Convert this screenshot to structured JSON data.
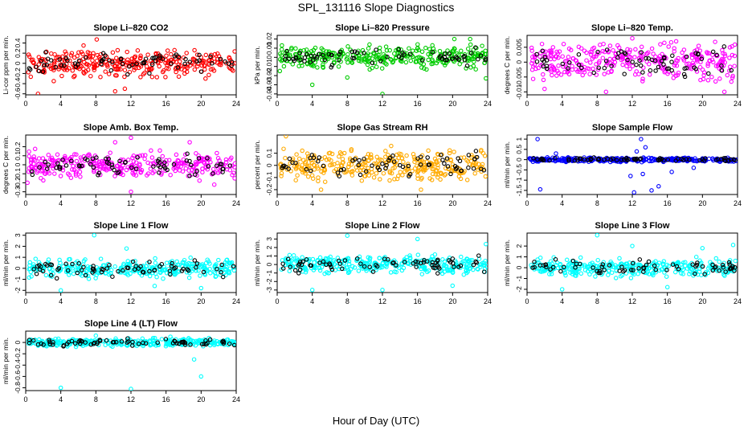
{
  "figure": {
    "title": "SPL_131116  Slope Diagnostics",
    "xlabel": "Hour of Day (UTC)"
  },
  "chart_data": [
    {
      "type": "scatter",
      "title": "Slope Li–820 CO2",
      "ylabel": "Li‐cor ppm per min.",
      "color": "#ff0000",
      "xlim": [
        0,
        24
      ],
      "xticks": [
        0,
        4,
        8,
        12,
        16,
        20,
        24
      ],
      "ylim": [
        -0.62,
        0.55
      ],
      "yticks": [
        -0.6,
        -0.4,
        -0.2,
        0.0,
        0.2,
        0.4
      ],
      "spread": 0.12,
      "band": 0.28,
      "outliers": [
        [
          1.4,
          -0.6
        ],
        [
          8.1,
          0.47
        ],
        [
          10.2,
          -0.55
        ],
        [
          11.3,
          -0.5
        ],
        [
          3.2,
          -0.35
        ],
        [
          20.5,
          -0.3
        ],
        [
          6.6,
          0.35
        ]
      ]
    },
    {
      "type": "scatter",
      "title": "Slope Li–820 Pressure",
      "ylabel": "kPa per min.",
      "color": "#00cc00",
      "xlim": [
        0,
        24
      ],
      "xticks": [
        0,
        4,
        8,
        12,
        16,
        20,
        24
      ],
      "ylim": [
        -0.041,
        0.024
      ],
      "yticks": [
        -0.04,
        -0.03,
        -0.02,
        -0.01,
        0.0,
        0.01,
        0.02
      ],
      "spread": 0.006,
      "band": 0.015,
      "outliers": [
        [
          4.0,
          -0.03
        ],
        [
          8.0,
          -0.022
        ],
        [
          12.0,
          -0.04
        ],
        [
          20.2,
          0.02
        ],
        [
          22.0,
          0.02
        ],
        [
          23.8,
          -0.023
        ],
        [
          0.3,
          -0.015
        ]
      ]
    },
    {
      "type": "scatter",
      "title": "Slope Li–820 Temp.",
      "ylabel": "degrees C per min.",
      "color": "#ff00ff",
      "xlim": [
        0,
        24
      ],
      "xticks": [
        0,
        4,
        8,
        12,
        16,
        20,
        24
      ],
      "ylim": [
        -0.011,
        0.009
      ],
      "yticks": [
        -0.01,
        -0.005,
        0.0,
        0.005
      ],
      "spread": 0.003,
      "band": 0.007,
      "outliers": [
        [
          12.0,
          0.008
        ],
        [
          9.0,
          -0.01
        ],
        [
          2.0,
          -0.009
        ],
        [
          22.5,
          -0.01
        ],
        [
          15.2,
          0.006
        ],
        [
          17.0,
          0.007
        ]
      ]
    },
    {
      "type": "scatter",
      "title": "Slope Amb. Box Temp.",
      "ylabel": "degrees C per min.",
      "color": "#ff00ff",
      "xlim": [
        0,
        24
      ],
      "xticks": [
        0,
        4,
        8,
        12,
        16,
        20,
        24
      ],
      "ylim": [
        -0.33,
        0.33
      ],
      "yticks": [
        -0.3,
        -0.2,
        -0.1,
        0.0,
        0.1,
        0.2
      ],
      "spread": 0.07,
      "band": 0.18,
      "outliers": [
        [
          12.0,
          0.3
        ],
        [
          12.0,
          -0.3
        ],
        [
          18.7,
          0.25
        ],
        [
          0.2,
          -0.2
        ],
        [
          10.2,
          0.25
        ],
        [
          21.5,
          -0.22
        ]
      ]
    },
    {
      "type": "scatter",
      "title": "Slope Gas Stream RH",
      "ylabel": "percent per min.",
      "color": "#ffaa00",
      "xlim": [
        0,
        24
      ],
      "xticks": [
        0,
        4,
        8,
        12,
        16,
        20,
        24
      ],
      "ylim": [
        -0.24,
        0.25
      ],
      "yticks": [
        -0.2,
        -0.1,
        0.0,
        0.1
      ],
      "spread": 0.06,
      "band": 0.15,
      "outliers": [
        [
          1.0,
          0.24
        ],
        [
          16.4,
          -0.2
        ],
        [
          5.0,
          -0.2
        ],
        [
          13.0,
          0.16
        ],
        [
          23.5,
          0.1
        ]
      ]
    },
    {
      "type": "scatter",
      "title": "Slope Sample Flow",
      "ylabel": "ml/min per min.",
      "color": "#0000ff",
      "xlim": [
        0,
        24
      ],
      "xticks": [
        0,
        4,
        8,
        12,
        16,
        20,
        24
      ],
      "ylim": [
        -1.7,
        1.2
      ],
      "yticks": [
        -1.5,
        -1.0,
        -0.5,
        0.0,
        0.5,
        1.0
      ],
      "spread": 0.05,
      "band": 0.12,
      "outliers": [
        [
          1.2,
          1.0
        ],
        [
          1.5,
          -1.45
        ],
        [
          12.2,
          -1.6
        ],
        [
          13.0,
          1.0
        ],
        [
          14.2,
          -1.5
        ],
        [
          13.5,
          0.6
        ],
        [
          12.5,
          0.4
        ],
        [
          11.8,
          -0.8
        ],
        [
          15.0,
          -1.3
        ],
        [
          3.3,
          0.3
        ],
        [
          16.5,
          -0.6
        ],
        [
          13.2,
          -0.7
        ],
        [
          19.0,
          -0.4
        ]
      ]
    },
    {
      "type": "scatter",
      "title": "Slope Line 1 Flow",
      "ylabel": "ml/min per min.",
      "color": "#00ffff",
      "xlim": [
        0,
        24
      ],
      "xticks": [
        0,
        4,
        8,
        12,
        16,
        20,
        24
      ],
      "ylim": [
        -2.2,
        3.2
      ],
      "yticks": [
        -2,
        -1,
        0,
        1,
        2,
        3
      ],
      "spread": 0.4,
      "band": 1.0,
      "outliers": [
        [
          7.8,
          3.0
        ],
        [
          4.0,
          -2.0
        ],
        [
          20.0,
          -1.8
        ],
        [
          11.5,
          1.8
        ],
        [
          14.7,
          -1.6
        ]
      ]
    },
    {
      "type": "scatter",
      "title": "Slope Line 2 Flow",
      "ylabel": "ml/min per min.",
      "color": "#00ffff",
      "xlim": [
        0,
        24
      ],
      "xticks": [
        0,
        4,
        8,
        12,
        16,
        20,
        24
      ],
      "ylim": [
        -3.3,
        3.7
      ],
      "yticks": [
        -3,
        -2,
        -1,
        0,
        1,
        2,
        3
      ],
      "spread": 0.5,
      "band": 1.2,
      "outliers": [
        [
          8.0,
          3.4
        ],
        [
          4.0,
          -3.0
        ],
        [
          12.0,
          -3.0
        ],
        [
          16.0,
          3.0
        ],
        [
          20.0,
          -2.5
        ],
        [
          23.8,
          2.4
        ]
      ]
    },
    {
      "type": "scatter",
      "title": "Slope Line 3 Flow",
      "ylabel": "ml/min per min.",
      "color": "#00ffff",
      "xlim": [
        0,
        24
      ],
      "xticks": [
        0,
        4,
        8,
        12,
        16,
        20,
        24
      ],
      "ylim": [
        -2.3,
        3.2
      ],
      "yticks": [
        -2,
        -1,
        0,
        1,
        2
      ],
      "spread": 0.4,
      "band": 1.0,
      "outliers": [
        [
          4.0,
          -2.0
        ],
        [
          8.0,
          3.0
        ],
        [
          12.0,
          2.0
        ],
        [
          16.0,
          -1.8
        ],
        [
          20.0,
          1.8
        ],
        [
          23.5,
          2.1
        ]
      ]
    },
    {
      "type": "scatter",
      "title": "Slope Line 4 (LT) Flow",
      "ylabel": "ml/min per min.",
      "color": "#00ffff",
      "xlim": [
        0,
        24
      ],
      "xticks": [
        0,
        4,
        8,
        12,
        16,
        20,
        24
      ],
      "ylim": [
        -0.85,
        0.2
      ],
      "yticks": [
        -0.8,
        -0.6,
        -0.4,
        -0.2,
        0.0
      ],
      "spread": 0.035,
      "band": 0.08,
      "outliers": [
        [
          4.0,
          -0.8
        ],
        [
          12.0,
          -0.82
        ],
        [
          20.0,
          -0.6
        ],
        [
          19.2,
          -0.3
        ],
        [
          8.0,
          0.12
        ],
        [
          16.5,
          0.1
        ]
      ]
    }
  ]
}
